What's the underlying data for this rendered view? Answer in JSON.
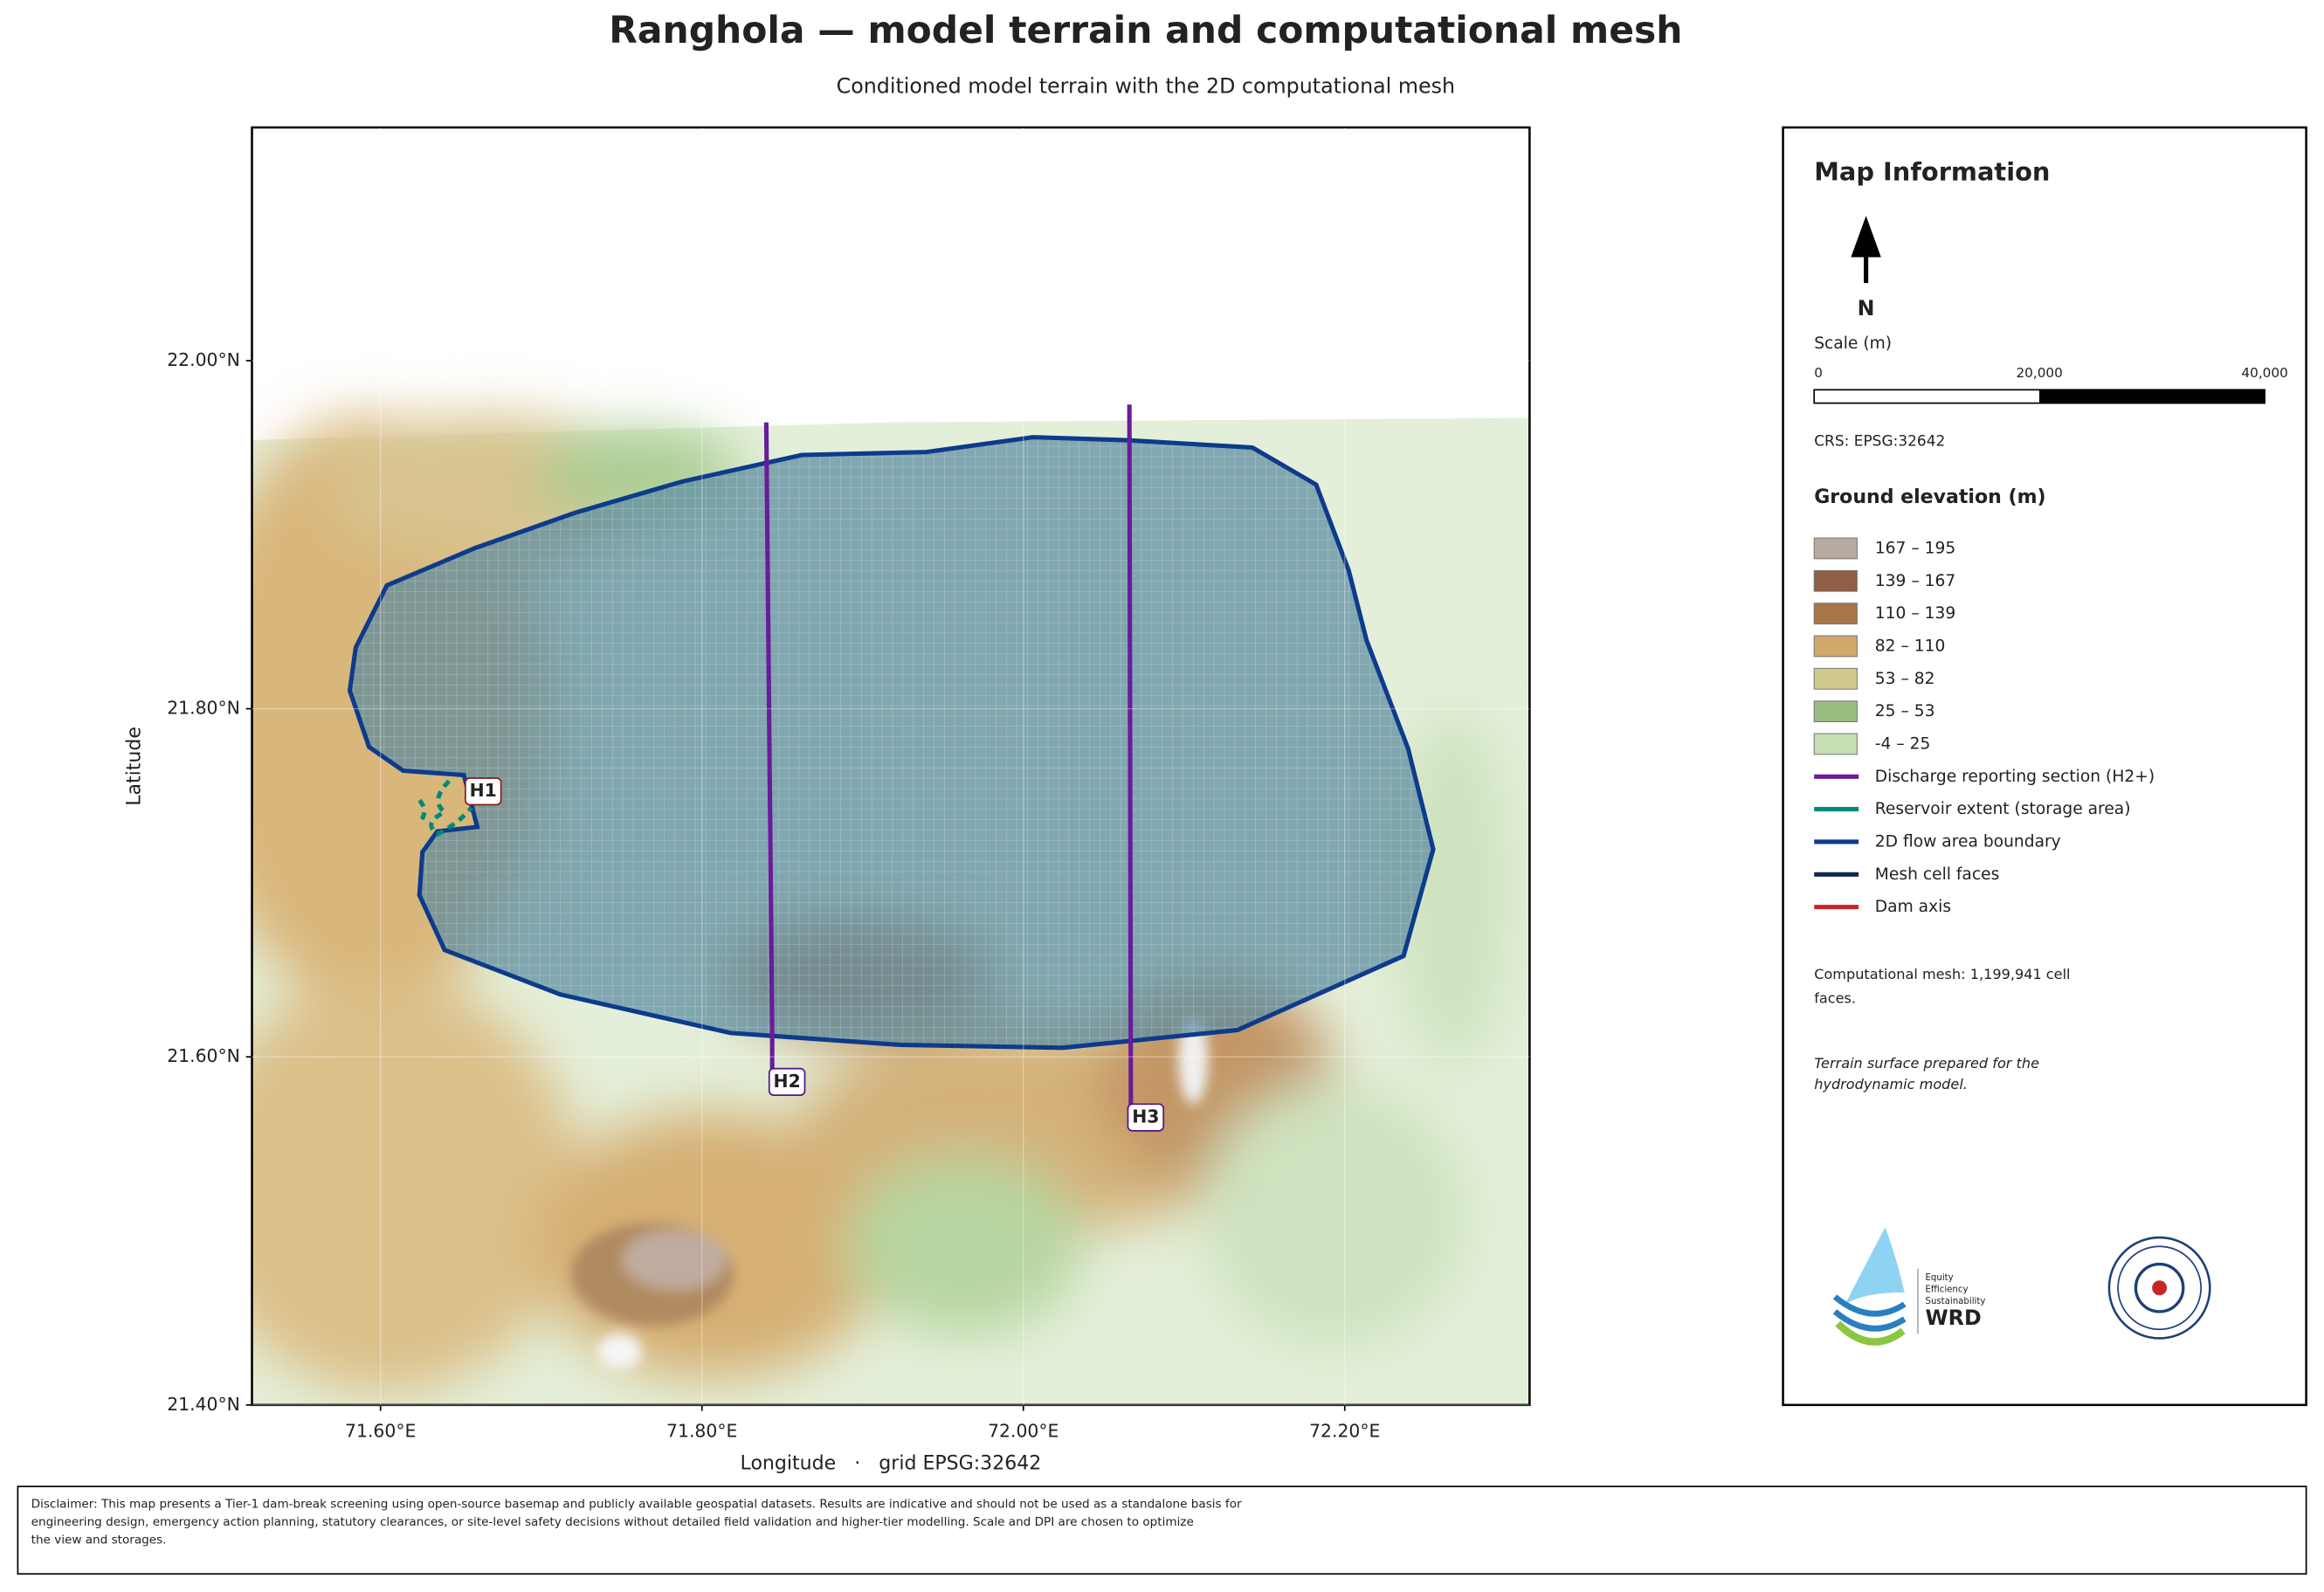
{
  "title": "Ranghola — model terrain and computational mesh",
  "subtitle": "Conditioned model terrain with the 2D computational mesh",
  "map": {
    "xlabel": "Longitude   ·   grid EPSG:32642",
    "ylabel": "Latitude",
    "xlim": [
      71.52,
      72.315
    ],
    "ylim": [
      21.4,
      22.134
    ],
    "xticks": [
      {
        "value": 71.6,
        "label": "71.60°E"
      },
      {
        "value": 71.8,
        "label": "71.80°E"
      },
      {
        "value": 72.0,
        "label": "72.00°E"
      },
      {
        "value": 72.2,
        "label": "72.20°E"
      }
    ],
    "yticks": [
      {
        "value": 21.4,
        "label": "21.40°N"
      },
      {
        "value": 21.6,
        "label": "21.60°N"
      },
      {
        "value": 21.8,
        "label": "21.80°N"
      },
      {
        "value": 22.0,
        "label": "22.00°N"
      }
    ],
    "markers": [
      "H1",
      "H2",
      "H3"
    ]
  },
  "panel": {
    "title": "Map Information",
    "north": "N",
    "scale_title": "Scale (m)",
    "scale_ticks": [
      {
        "value": 0,
        "label": "0"
      },
      {
        "value": 20000,
        "label": "20,000"
      },
      {
        "value": 40000,
        "label": "40,000"
      }
    ],
    "crs": "CRS: EPSG:32642",
    "legend_title": "Ground elevation (m)",
    "elevation": [
      {
        "label": "167 – 195",
        "color": "#b9aaa0"
      },
      {
        "label": "139 – 167",
        "color": "#8f5e44"
      },
      {
        "label": "110 – 139",
        "color": "#a77646"
      },
      {
        "label": "82 – 110",
        "color": "#cfa86a"
      },
      {
        "label": "53 – 82",
        "color": "#cfc98c"
      },
      {
        "label": "25 – 53",
        "color": "#98bd80"
      },
      {
        "label": "-4 – 25",
        "color": "#c6deb2"
      }
    ],
    "lines": [
      {
        "label": "Discharge reporting section (H2+)",
        "color": "#6a1b9a"
      },
      {
        "label": "Reservoir extent (storage area)",
        "color": "#00897b"
      },
      {
        "label": "2D flow area boundary",
        "color": "#0d3b8c"
      },
      {
        "label": "Mesh cell faces",
        "color": "#14284b"
      },
      {
        "label": "Dam axis",
        "color": "#c62828"
      }
    ],
    "mesh_note": [
      "Computational mesh: 1,199,941 cell",
      "faces."
    ],
    "terrain_note": [
      "Terrain surface prepared for the",
      "hydrodynamic model."
    ],
    "logo_text": [
      "Equity",
      "Efficiency",
      "Sustainability",
      "WRD"
    ]
  },
  "disclaimer": [
    "Disclaimer: This map presents a Tier-1 dam-break screening using open-source basemap and publicly available geospatial datasets. Results are indicative and should not be used as a standalone basis for",
    "engineering design, emergency action planning, statutory clearances, or site-level safety decisions without detailed field validation and higher-tier modelling. Scale and DPI are chosen to optimize",
    "the view and storages."
  ]
}
